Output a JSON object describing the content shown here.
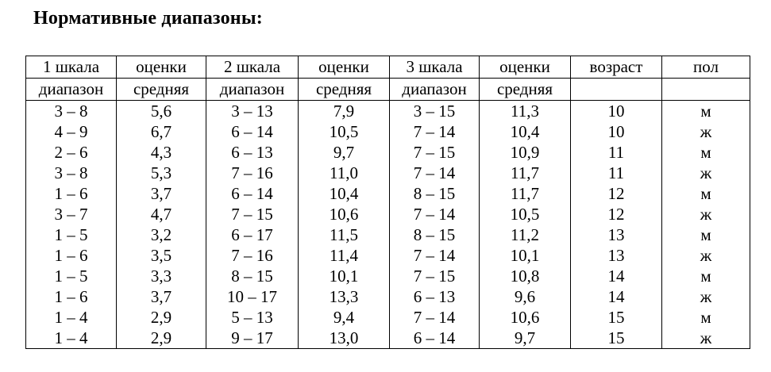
{
  "title": "Нормативные диапазоны:",
  "header_row1": [
    "1 шкала",
    "оценки",
    "2 шкала",
    "оценки",
    "3 шкала",
    "оценки",
    "возраст",
    "пол"
  ],
  "header_row2": [
    "диапазон",
    "средняя",
    "диапазон",
    "средняя",
    "диапазон",
    "средняя",
    "",
    ""
  ],
  "rows": [
    [
      "3 – 8",
      "5,6",
      "3 – 13",
      "7,9",
      "3 – 15",
      "11,3",
      "10",
      "м"
    ],
    [
      "4 – 9",
      "6,7",
      "6 – 14",
      "10,5",
      "7 – 14",
      "10,4",
      "10",
      "ж"
    ],
    [
      "2 – 6",
      "4,3",
      "6 – 13",
      "9,7",
      "7 – 15",
      "10,9",
      "11",
      "м"
    ],
    [
      "3 – 8",
      "5,3",
      "7 – 16",
      "11,0",
      "7 – 14",
      "11,7",
      "11",
      "ж"
    ],
    [
      "1 – 6",
      "3,7",
      "6 – 14",
      "10,4",
      "8 – 15",
      "11,7",
      "12",
      "м"
    ],
    [
      "3 – 7",
      "4,7",
      "7 – 15",
      "10,6",
      "7 – 14",
      "10,5",
      "12",
      "ж"
    ],
    [
      "1 – 5",
      "3,2",
      "6 – 17",
      "11,5",
      "8 – 15",
      "11,2",
      "13",
      "м"
    ],
    [
      "1 – 6",
      "3,5",
      "7 – 16",
      "11,4",
      "7 – 14",
      "10,1",
      "13",
      "ж"
    ],
    [
      "1 – 5",
      "3,3",
      "8 – 15",
      "10,1",
      "7 – 15",
      "10,8",
      "14",
      "м"
    ],
    [
      "1 – 6",
      "3,7",
      "10 – 17",
      "13,3",
      "6 – 13",
      "9,6",
      "14",
      "ж"
    ],
    [
      "1 – 4",
      "2,9",
      "5 – 13",
      "9,4",
      "7 – 14",
      "10,6",
      "15",
      "м"
    ],
    [
      "1 – 4",
      "2,9",
      "9 – 17",
      "13,0",
      "6 – 14",
      "9,7",
      "15",
      "ж"
    ]
  ]
}
